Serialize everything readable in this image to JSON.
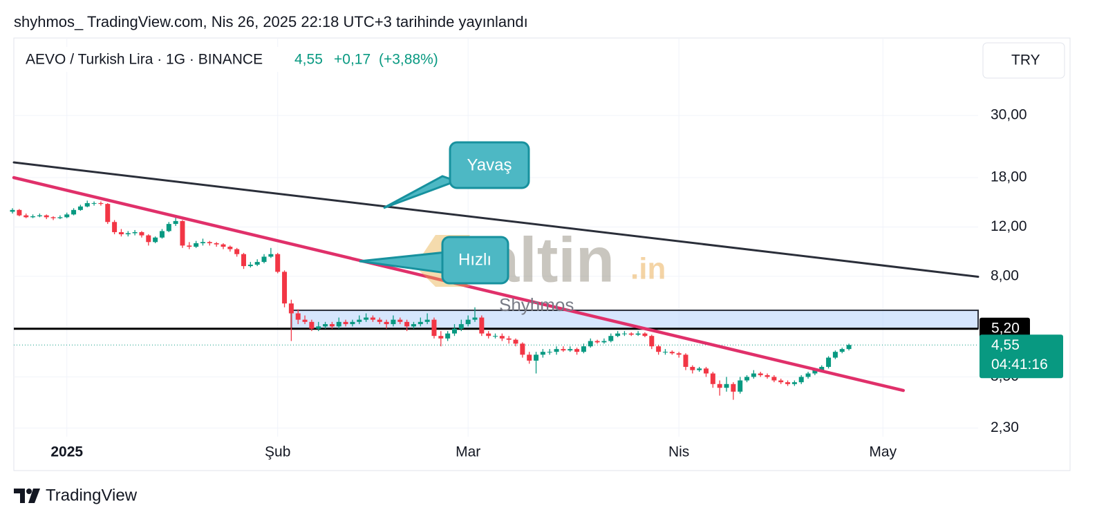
{
  "header": "shyhmos_ TradingView.com, Nis 26, 2025 22:18 UTC+3 tarihinde yayınlandı",
  "footer": "TradingView",
  "chart_data": {
    "type": "candlestick",
    "symbol": "AEVO / Turkish Lira · 1G · BINANCE",
    "price": "4,55",
    "change": "+0,17",
    "change_pct": "(+3,88%)",
    "currency": "TRY",
    "log_scale": true,
    "grid": true,
    "up_color": "#089981",
    "down_color": "#f23645",
    "xlim": [
      -7.8,
      134
    ],
    "xticks": [
      {
        "value": 0,
        "label": "2025"
      },
      {
        "value": 31,
        "label": "Şub"
      },
      {
        "value": 59,
        "label": "Mar"
      },
      {
        "value": 90,
        "label": "Nis"
      },
      {
        "value": 120,
        "label": "May"
      }
    ],
    "ylim": [
      1.63,
      56.7
    ],
    "yticks": [
      {
        "value": 2.3,
        "label": "2,30"
      },
      {
        "value": 3.5,
        "label": "3,50"
      },
      {
        "value": 8,
        "label": "8,00"
      },
      {
        "value": 12,
        "label": "12,00"
      },
      {
        "value": 18,
        "label": "18,00"
      },
      {
        "value": 30,
        "label": "30,00"
      }
    ],
    "x": [
      -8,
      -7,
      -6,
      -5,
      -4,
      -3,
      -2,
      -1,
      0,
      1,
      2,
      3,
      4,
      5,
      6,
      7,
      8,
      9,
      10,
      11,
      12,
      13,
      14,
      15,
      16,
      17,
      18,
      19,
      20,
      21,
      22,
      23,
      24,
      25,
      26,
      27,
      28,
      29,
      30,
      31,
      32,
      33,
      34,
      35,
      36,
      37,
      38,
      39,
      40,
      41,
      42,
      43,
      44,
      45,
      46,
      47,
      48,
      49,
      50,
      51,
      52,
      53,
      54,
      55,
      56,
      57,
      58,
      59,
      60,
      61,
      62,
      63,
      64,
      65,
      66,
      67,
      68,
      69,
      70,
      71,
      72,
      73,
      74,
      75,
      76,
      77,
      78,
      79,
      80,
      81,
      82,
      83,
      84,
      85,
      86,
      87,
      88,
      89,
      90,
      91,
      92,
      93,
      94,
      95,
      96,
      97,
      98,
      99,
      100,
      101,
      102,
      103,
      104,
      105,
      106,
      107,
      108,
      109,
      110,
      111,
      112,
      113,
      114,
      115
    ],
    "ohlc": [
      [
        13.6,
        14.0,
        13.4,
        13.8
      ],
      [
        13.8,
        13.9,
        13.1,
        13.2
      ],
      [
        13.2,
        13.4,
        12.9,
        13.0
      ],
      [
        13.0,
        13.3,
        12.9,
        13.1
      ],
      [
        13.1,
        13.4,
        13.0,
        13.2
      ],
      [
        13.2,
        13.3,
        12.8,
        13.0
      ],
      [
        13.0,
        13.1,
        12.7,
        12.9
      ],
      [
        12.9,
        13.2,
        12.8,
        13.0
      ],
      [
        13.0,
        13.5,
        12.9,
        13.3
      ],
      [
        13.3,
        14.0,
        13.2,
        13.8
      ],
      [
        13.8,
        14.4,
        13.7,
        14.2
      ],
      [
        14.2,
        14.9,
        14.1,
        14.6
      ],
      [
        14.6,
        14.8,
        14.3,
        14.6
      ],
      [
        14.6,
        14.8,
        14.3,
        14.5
      ],
      [
        14.5,
        14.6,
        12.3,
        12.5
      ],
      [
        12.5,
        12.7,
        11.3,
        11.5
      ],
      [
        11.5,
        11.8,
        11.1,
        11.3
      ],
      [
        11.3,
        11.6,
        11.1,
        11.4
      ],
      [
        11.4,
        11.7,
        11.2,
        11.5
      ],
      [
        11.5,
        11.6,
        11.0,
        11.2
      ],
      [
        11.2,
        11.3,
        10.3,
        10.6
      ],
      [
        10.6,
        11.1,
        10.5,
        11.0
      ],
      [
        11.0,
        11.8,
        10.9,
        11.6
      ],
      [
        11.6,
        12.5,
        11.5,
        12.3
      ],
      [
        12.3,
        13.0,
        12.1,
        12.6
      ],
      [
        12.6,
        12.7,
        10.1,
        10.3
      ],
      [
        10.3,
        10.6,
        10.0,
        10.2
      ],
      [
        10.2,
        10.7,
        10.1,
        10.5
      ],
      [
        10.5,
        10.9,
        10.3,
        10.6
      ],
      [
        10.6,
        10.7,
        10.3,
        10.5
      ],
      [
        10.5,
        10.6,
        10.2,
        10.4
      ],
      [
        10.4,
        10.5,
        10.0,
        10.2
      ],
      [
        10.2,
        10.3,
        9.8,
        10.0
      ],
      [
        10.0,
        10.1,
        9.4,
        9.6
      ],
      [
        9.6,
        9.7,
        8.5,
        8.7
      ],
      [
        8.7,
        9.0,
        8.6,
        8.8
      ],
      [
        8.8,
        9.2,
        8.7,
        9.0
      ],
      [
        9.0,
        9.6,
        8.9,
        9.4
      ],
      [
        9.4,
        10.1,
        9.3,
        9.6
      ],
      [
        9.6,
        9.7,
        8.2,
        8.3
      ],
      [
        8.3,
        8.4,
        6.2,
        6.4
      ],
      [
        6.4,
        6.6,
        4.7,
        5.9
      ],
      [
        5.9,
        6.1,
        5.4,
        5.6
      ],
      [
        5.6,
        5.8,
        5.4,
        5.5
      ],
      [
        5.5,
        5.6,
        5.1,
        5.2
      ],
      [
        5.2,
        5.5,
        5.1,
        5.3
      ],
      [
        5.3,
        5.5,
        5.2,
        5.4
      ],
      [
        5.4,
        5.5,
        5.2,
        5.3
      ],
      [
        5.3,
        5.7,
        5.2,
        5.5
      ],
      [
        5.5,
        5.6,
        5.3,
        5.4
      ],
      [
        5.4,
        5.6,
        5.3,
        5.5
      ],
      [
        5.5,
        5.8,
        5.4,
        5.6
      ],
      [
        5.6,
        5.9,
        5.5,
        5.7
      ],
      [
        5.7,
        5.8,
        5.5,
        5.6
      ],
      [
        5.6,
        5.7,
        5.4,
        5.5
      ],
      [
        5.5,
        5.6,
        5.2,
        5.4
      ],
      [
        5.4,
        5.8,
        5.3,
        5.6
      ],
      [
        5.6,
        5.7,
        5.4,
        5.5
      ],
      [
        5.5,
        5.6,
        5.1,
        5.3
      ],
      [
        5.3,
        5.5,
        5.2,
        5.4
      ],
      [
        5.4,
        5.7,
        5.3,
        5.5
      ],
      [
        5.5,
        5.9,
        5.4,
        5.6
      ],
      [
        5.6,
        5.7,
        4.8,
        4.9
      ],
      [
        4.9,
        5.1,
        4.5,
        4.8
      ],
      [
        4.8,
        5.1,
        4.7,
        5.0
      ],
      [
        5.0,
        5.4,
        4.9,
        5.2
      ],
      [
        5.2,
        5.6,
        5.1,
        5.4
      ],
      [
        5.4,
        5.8,
        5.3,
        5.6
      ],
      [
        5.6,
        6.2,
        5.5,
        5.7
      ],
      [
        5.7,
        5.8,
        4.9,
        5.0
      ],
      [
        5.0,
        5.1,
        4.8,
        4.9
      ],
      [
        4.9,
        5.0,
        4.8,
        4.9
      ],
      [
        4.9,
        5.0,
        4.7,
        4.8
      ],
      [
        4.8,
        4.9,
        4.6,
        4.75
      ],
      [
        4.75,
        4.8,
        4.5,
        4.6
      ],
      [
        4.6,
        4.65,
        4.1,
        4.2
      ],
      [
        4.2,
        4.3,
        3.9,
        4.0
      ],
      [
        4.0,
        4.3,
        3.6,
        4.2
      ],
      [
        4.2,
        4.4,
        4.1,
        4.3
      ],
      [
        4.3,
        4.4,
        4.2,
        4.3
      ],
      [
        4.3,
        4.5,
        4.2,
        4.4
      ],
      [
        4.4,
        4.5,
        4.3,
        4.35
      ],
      [
        4.35,
        4.5,
        4.3,
        4.4
      ],
      [
        4.4,
        4.45,
        4.2,
        4.3
      ],
      [
        4.3,
        4.6,
        4.25,
        4.5
      ],
      [
        4.5,
        4.8,
        4.45,
        4.7
      ],
      [
        4.7,
        4.75,
        4.6,
        4.65
      ],
      [
        4.65,
        4.8,
        4.6,
        4.7
      ],
      [
        4.7,
        5.0,
        4.65,
        4.9
      ],
      [
        4.9,
        5.1,
        4.85,
        5.0
      ],
      [
        5.0,
        5.1,
        4.9,
        5.0
      ],
      [
        5.0,
        5.05,
        4.9,
        4.95
      ],
      [
        4.95,
        5.1,
        4.9,
        5.0
      ],
      [
        5.0,
        5.05,
        4.85,
        4.9
      ],
      [
        4.9,
        4.95,
        4.4,
        4.5
      ],
      [
        4.5,
        4.55,
        4.2,
        4.3
      ],
      [
        4.3,
        4.4,
        4.2,
        4.3
      ],
      [
        4.3,
        4.35,
        4.2,
        4.25
      ],
      [
        4.25,
        4.3,
        4.1,
        4.2
      ],
      [
        4.2,
        4.25,
        3.7,
        3.8
      ],
      [
        3.8,
        3.85,
        3.6,
        3.7
      ],
      [
        3.7,
        3.8,
        3.65,
        3.75
      ],
      [
        3.75,
        3.8,
        3.5,
        3.6
      ],
      [
        3.6,
        3.65,
        3.2,
        3.3
      ],
      [
        3.3,
        3.4,
        3.0,
        3.2
      ],
      [
        3.2,
        3.5,
        3.1,
        3.3
      ],
      [
        3.3,
        3.35,
        2.9,
        3.1
      ],
      [
        3.1,
        3.5,
        3.05,
        3.4
      ],
      [
        3.4,
        3.55,
        3.35,
        3.5
      ],
      [
        3.5,
        3.7,
        3.45,
        3.6
      ],
      [
        3.6,
        3.65,
        3.5,
        3.55
      ],
      [
        3.55,
        3.6,
        3.45,
        3.5
      ],
      [
        3.5,
        3.55,
        3.35,
        3.4
      ],
      [
        3.4,
        3.45,
        3.3,
        3.35
      ],
      [
        3.35,
        3.4,
        3.25,
        3.3
      ],
      [
        3.3,
        3.4,
        3.25,
        3.35
      ],
      [
        3.35,
        3.55,
        3.3,
        3.5
      ],
      [
        3.5,
        3.65,
        3.45,
        3.6
      ],
      [
        3.6,
        3.75,
        3.55,
        3.7
      ],
      [
        3.7,
        3.85,
        3.65,
        3.8
      ],
      [
        3.8,
        4.15,
        3.75,
        4.1
      ],
      [
        4.1,
        4.35,
        4.05,
        4.3
      ],
      [
        4.3,
        4.45,
        4.25,
        4.4
      ],
      [
        4.4,
        4.6,
        4.35,
        4.55
      ]
    ],
    "last_price": {
      "value": 4.55,
      "label": "4,55"
    },
    "countdown": "04:41:16",
    "level": {
      "value": 5.2,
      "label": "5,20"
    },
    "zone": {
      "x": [
        33,
        134
      ],
      "y": [
        5.2,
        6.05
      ]
    },
    "trendlines": [
      {
        "color": "#2a2e39",
        "points": [
          [
            -7.8,
            20.4
          ],
          [
            134,
            7.97
          ]
        ]
      },
      {
        "color": "#e0306a",
        "points": [
          [
            -7.8,
            18.0
          ],
          [
            123,
            3.13
          ]
        ]
      }
    ],
    "annotations": [
      "Yavaş",
      "Hızlı"
    ],
    "watermark": "altin",
    "watermark_suffix": ".in",
    "watermark_author": "Shyhmos"
  }
}
